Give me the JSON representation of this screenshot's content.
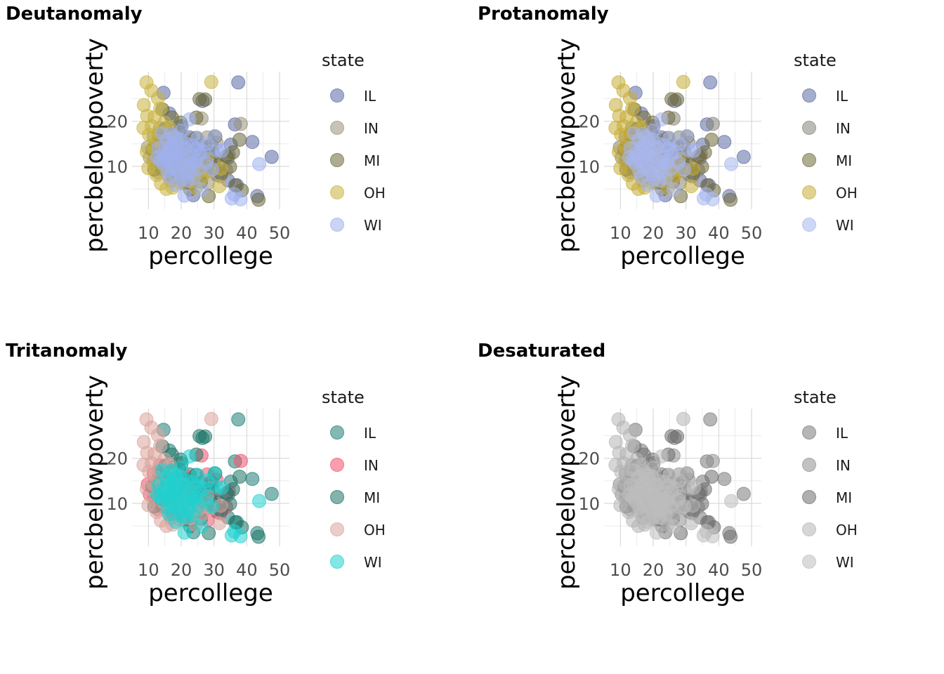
{
  "chart_data": [
    {
      "type": "scatter",
      "title": "Deutanomaly",
      "xlabel": "percollege",
      "ylabel": "percbelowpoverty",
      "xlim": [
        5,
        53
      ],
      "ylim": [
        0.5,
        31
      ],
      "xticks": [
        10,
        20,
        30,
        40,
        50
      ],
      "yticks": [
        10,
        20
      ],
      "grid": true,
      "legend": {
        "title": "state",
        "position": "right"
      },
      "series": [
        {
          "name": "IL",
          "color": "#5b6aa8"
        },
        {
          "name": "IN",
          "color": "#9a9478"
        },
        {
          "name": "MI",
          "color": "#6b6a3a"
        },
        {
          "name": "OH",
          "color": "#c9b33e"
        },
        {
          "name": "WI",
          "color": "#9fb1ef"
        }
      ]
    },
    {
      "type": "scatter",
      "title": "Protanomaly",
      "xlabel": "percollege",
      "ylabel": "percbelowpoverty",
      "xlim": [
        5,
        53
      ],
      "ylim": [
        0.5,
        31
      ],
      "xticks": [
        10,
        20,
        30,
        40,
        50
      ],
      "yticks": [
        10,
        20
      ],
      "grid": true,
      "legend": {
        "title": "state",
        "position": "right"
      },
      "series": [
        {
          "name": "IL",
          "color": "#5d6ba6"
        },
        {
          "name": "IN",
          "color": "#85857a"
        },
        {
          "name": "MI",
          "color": "#6f6a3a"
        },
        {
          "name": "OH",
          "color": "#c7ad36"
        },
        {
          "name": "WI",
          "color": "#a7b6ee"
        }
      ]
    },
    {
      "type": "scatter",
      "title": "Tritanomaly",
      "xlabel": "percollege",
      "ylabel": "percbelowpoverty",
      "xlim": [
        5,
        53
      ],
      "ylim": [
        0.5,
        31
      ],
      "xticks": [
        10,
        20,
        30,
        40,
        50
      ],
      "yticks": [
        10,
        20
      ],
      "grid": true,
      "legend": {
        "title": "state",
        "position": "right"
      },
      "series": [
        {
          "name": "IL",
          "color": "#1d7d78"
        },
        {
          "name": "IN",
          "color": "#f2506c"
        },
        {
          "name": "MI",
          "color": "#1f7466"
        },
        {
          "name": "OH",
          "color": "#dba49c"
        },
        {
          "name": "WI",
          "color": "#1fd2d0"
        }
      ]
    },
    {
      "type": "scatter",
      "title": "Desaturated",
      "xlabel": "percollege",
      "ylabel": "percbelowpoverty",
      "xlim": [
        5,
        53
      ],
      "ylim": [
        0.5,
        31
      ],
      "xticks": [
        10,
        20,
        30,
        40,
        50
      ],
      "yticks": [
        10,
        20
      ],
      "grid": true,
      "legend": {
        "title": "state",
        "position": "right"
      },
      "series": [
        {
          "name": "IL",
          "color": "#7a7a7a"
        },
        {
          "name": "IN",
          "color": "#8f8f8f"
        },
        {
          "name": "MI",
          "color": "#6e6e6e"
        },
        {
          "name": "OH",
          "color": "#b5b5b5"
        },
        {
          "name": "WI",
          "color": "#bdbdbd"
        }
      ]
    }
  ],
  "points": {
    "IL": [
      [
        37.4,
        28.6
      ],
      [
        26.5,
        24.5
      ],
      [
        36.4,
        19.3
      ],
      [
        35.1,
        14.8
      ],
      [
        41.7,
        15.4
      ],
      [
        43.2,
        3.4
      ],
      [
        34.3,
        11.9
      ],
      [
        28.8,
        10.9
      ],
      [
        47.6,
        12.1
      ],
      [
        27.3,
        8.9
      ],
      [
        34.3,
        6.9
      ],
      [
        37.0,
        5.8
      ],
      [
        23.7,
        3.6
      ],
      [
        31.0,
        8.1
      ],
      [
        28.2,
        12.9
      ],
      [
        22.5,
        16.4
      ],
      [
        25.4,
        11.4
      ],
      [
        18.4,
        11.0
      ],
      [
        14.6,
        26.3
      ],
      [
        16.4,
        21.7
      ],
      [
        20.1,
        18.9
      ],
      [
        12.4,
        14.8
      ],
      [
        15.3,
        13.2
      ],
      [
        17.3,
        9.8
      ],
      [
        19.6,
        7.3
      ],
      [
        21.5,
        13.4
      ],
      [
        13.2,
        17.0
      ],
      [
        18.9,
        14.4
      ],
      [
        23.4,
        9.5
      ],
      [
        16.1,
        12.2
      ],
      [
        26.1,
        14.5
      ],
      [
        29.9,
        9.7
      ],
      [
        20.7,
        11.8
      ],
      [
        14.1,
        9.4
      ],
      [
        11.8,
        11.5
      ],
      [
        17.7,
        17.9
      ],
      [
        22.9,
        6.4
      ],
      [
        19.2,
        15.6
      ],
      [
        15.8,
        10.5
      ],
      [
        24.6,
        13.0
      ]
    ],
    "IN": [
      [
        38.2,
        19.4
      ],
      [
        34.5,
        12.6
      ],
      [
        30.8,
        15.2
      ],
      [
        26.2,
        20.6
      ],
      [
        27.9,
        16.4
      ],
      [
        22.8,
        13.0
      ],
      [
        24.9,
        10.1
      ],
      [
        18.1,
        9.0
      ],
      [
        16.4,
        11.9
      ],
      [
        14.2,
        13.8
      ],
      [
        12.3,
        10.6
      ],
      [
        10.4,
        12.0
      ],
      [
        20.5,
        7.2
      ],
      [
        19.7,
        14.9
      ],
      [
        25.5,
        8.1
      ],
      [
        28.1,
        6.3
      ],
      [
        11.6,
        16.5
      ],
      [
        13.5,
        18.4
      ],
      [
        17.1,
        17.1
      ],
      [
        21.4,
        16.0
      ],
      [
        15.3,
        9.3
      ],
      [
        23.7,
        11.5
      ],
      [
        19.0,
        12.3
      ],
      [
        16.9,
        6.8
      ],
      [
        30.1,
        11.0
      ],
      [
        33.7,
        9.2
      ],
      [
        14.8,
        15.1
      ],
      [
        9.8,
        14.2
      ],
      [
        12.8,
        8.7
      ],
      [
        18.6,
        10.2
      ],
      [
        26.8,
        12.3
      ],
      [
        31.9,
        7.8
      ]
    ],
    "MI": [
      [
        25.6,
        24.9
      ],
      [
        27.3,
        24.8
      ],
      [
        35.8,
        13.1
      ],
      [
        37.8,
        15.9
      ],
      [
        29.2,
        14.7
      ],
      [
        24.5,
        16.3
      ],
      [
        33.8,
        12.2
      ],
      [
        36.5,
        5.8
      ],
      [
        43.6,
        2.6
      ],
      [
        38.5,
        4.7
      ],
      [
        26.0,
        6.6
      ],
      [
        28.4,
        3.4
      ],
      [
        22.7,
        4.9
      ],
      [
        19.8,
        19.7
      ],
      [
        17.2,
        20.8
      ],
      [
        15.1,
        18.3
      ],
      [
        13.4,
        16.1
      ],
      [
        11.2,
        13.7
      ],
      [
        21.9,
        15.2
      ],
      [
        23.8,
        11.0
      ],
      [
        31.5,
        10.2
      ],
      [
        18.9,
        13.2
      ],
      [
        16.2,
        10.9
      ],
      [
        20.4,
        9.1
      ],
      [
        14.3,
        22.6
      ],
      [
        24.6,
        20.8
      ],
      [
        32.2,
        8.4
      ],
      [
        27.6,
        9.6
      ],
      [
        29.7,
        12.8
      ],
      [
        13.0,
        12.7
      ],
      [
        18.0,
        15.6
      ],
      [
        22.1,
        12.4
      ],
      [
        25.9,
        11.9
      ],
      [
        15.7,
        14.9
      ],
      [
        19.3,
        17.6
      ],
      [
        21.0,
        6.3
      ],
      [
        17.5,
        7.7
      ],
      [
        11.8,
        9.3
      ],
      [
        30.4,
        16.6
      ],
      [
        34.9,
        9.9
      ]
    ],
    "OH": [
      [
        9.4,
        28.6
      ],
      [
        29.2,
        28.7
      ],
      [
        10.9,
        26.8
      ],
      [
        12.9,
        25.1
      ],
      [
        8.6,
        23.6
      ],
      [
        11.9,
        20.9
      ],
      [
        13.6,
        22.8
      ],
      [
        8.5,
        18.5
      ],
      [
        10.2,
        17.0
      ],
      [
        12.2,
        15.8
      ],
      [
        14.0,
        14.1
      ],
      [
        9.5,
        13.2
      ],
      [
        11.4,
        11.0
      ],
      [
        10.0,
        9.6
      ],
      [
        12.5,
        8.1
      ],
      [
        13.8,
        6.2
      ],
      [
        15.5,
        5.0
      ],
      [
        17.4,
        5.3
      ],
      [
        16.2,
        7.9
      ],
      [
        14.8,
        10.2
      ],
      [
        18.1,
        9.5
      ],
      [
        15.7,
        12.3
      ],
      [
        17.0,
        14.5
      ],
      [
        19.3,
        12.2
      ],
      [
        20.9,
        8.8
      ],
      [
        22.6,
        6.7
      ],
      [
        24.5,
        5.2
      ],
      [
        26.3,
        7.4
      ],
      [
        28.7,
        8.9
      ],
      [
        31.6,
        5.6
      ],
      [
        32.1,
        9.5
      ],
      [
        27.9,
        11.5
      ],
      [
        24.7,
        10.4
      ],
      [
        22.2,
        11.8
      ],
      [
        20.3,
        14.2
      ],
      [
        18.4,
        16.3
      ],
      [
        16.6,
        18.4
      ],
      [
        14.9,
        19.7
      ],
      [
        13.1,
        17.4
      ],
      [
        11.0,
        18.9
      ],
      [
        9.6,
        21.2
      ],
      [
        19.6,
        6.4
      ],
      [
        21.7,
        10.1
      ],
      [
        23.5,
        8.6
      ],
      [
        25.8,
        9.0
      ],
      [
        16.0,
        16.1
      ],
      [
        13.3,
        12.1
      ],
      [
        11.5,
        14.3
      ]
    ],
    "WI": [
      [
        43.8,
        10.5
      ],
      [
        38.1,
        2.7
      ],
      [
        36.2,
        3.8
      ],
      [
        30.2,
        16.7
      ],
      [
        32.4,
        13.5
      ],
      [
        28.0,
        15.0
      ],
      [
        24.2,
        11.2
      ],
      [
        18.4,
        12.6
      ],
      [
        15.0,
        12.2
      ],
      [
        16.7,
        13.6
      ],
      [
        19.5,
        11.8
      ],
      [
        20.8,
        10.2
      ],
      [
        22.3,
        8.7
      ],
      [
        17.2,
        9.5
      ],
      [
        14.3,
        10.8
      ],
      [
        13.1,
        14.1
      ],
      [
        18.7,
        15.4
      ],
      [
        21.2,
        14.0
      ],
      [
        23.1,
        12.2
      ],
      [
        25.4,
        9.4
      ],
      [
        16.0,
        11.1
      ],
      [
        19.9,
        8.2
      ],
      [
        21.9,
        6.9
      ],
      [
        17.8,
        16.6
      ],
      [
        20.0,
        17.9
      ],
      [
        22.5,
        20.4
      ],
      [
        25.0,
        16.3
      ],
      [
        26.9,
        13.2
      ],
      [
        15.4,
        15.8
      ],
      [
        14.1,
        17.3
      ],
      [
        12.7,
        12.0
      ],
      [
        23.8,
        7.4
      ],
      [
        26.2,
        4.9
      ],
      [
        21.0,
        3.5
      ],
      [
        18.3,
        5.9
      ],
      [
        16.3,
        7.6
      ],
      [
        19.1,
        13.3
      ],
      [
        17.4,
        14.8
      ],
      [
        20.5,
        12.5
      ],
      [
        22.8,
        11.0
      ],
      [
        18.0,
        10.4
      ],
      [
        15.8,
        9.0
      ],
      [
        24.6,
        13.9
      ],
      [
        27.7,
        10.8
      ],
      [
        29.5,
        9.3
      ],
      [
        13.6,
        11.3
      ],
      [
        16.9,
        17.2
      ],
      [
        19.7,
        16.0
      ],
      [
        21.6,
        15.1
      ],
      [
        23.4,
        14.7
      ],
      [
        25.7,
        12.6
      ],
      [
        18.9,
        9.0
      ],
      [
        20.3,
        7.2
      ],
      [
        14.8,
        13.0
      ],
      [
        17.1,
        12.0
      ],
      [
        16.2,
        14.3
      ],
      [
        22.0,
        9.7
      ],
      [
        24.0,
        10.6
      ],
      [
        30.9,
        13.6
      ],
      [
        35.4,
        2.9
      ]
    ]
  }
}
